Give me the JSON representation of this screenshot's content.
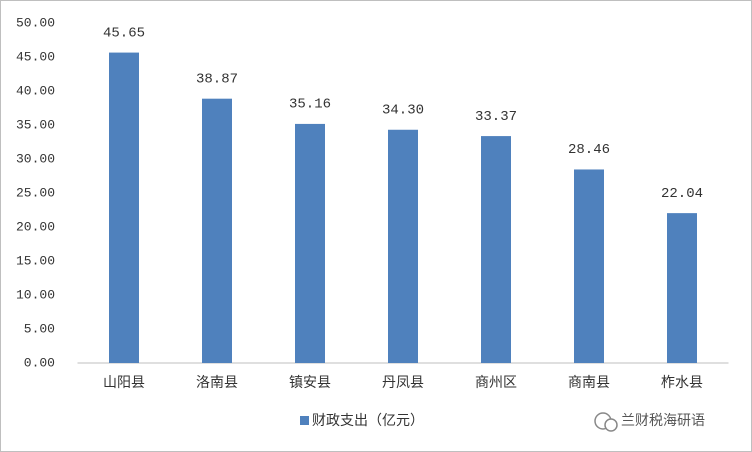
{
  "chart_data": {
    "type": "bar",
    "categories": [
      "山阳县",
      "洛南县",
      "镇安县",
      "丹凤县",
      "商州区",
      "商南县",
      "柞水县"
    ],
    "series": [
      {
        "name": "财政支出（亿元）",
        "color": "#4f81bd",
        "values": [
          45.65,
          38.87,
          35.16,
          34.3,
          33.37,
          28.46,
          22.04
        ],
        "value_labels": [
          "45.65",
          "38.87",
          "35.16",
          "34.30",
          "33.37",
          "28.46",
          "22.04"
        ]
      }
    ],
    "ylim": [
      0,
      50
    ],
    "yticks": [
      {
        "value": 0,
        "label": "0.00"
      },
      {
        "value": 5,
        "label": "5.00"
      },
      {
        "value": 10,
        "label": "10.00"
      },
      {
        "value": 15,
        "label": "15.00"
      },
      {
        "value": 20,
        "label": "20.00"
      },
      {
        "value": 25,
        "label": "25.00"
      },
      {
        "value": 30,
        "label": "30.00"
      },
      {
        "value": 35,
        "label": "35.00"
      },
      {
        "value": 40,
        "label": "40.00"
      },
      {
        "value": 45,
        "label": "45.00"
      },
      {
        "value": 50,
        "label": "50.00"
      }
    ],
    "grid": false,
    "legend": "bottom",
    "watermark": "兰财税海研语"
  }
}
